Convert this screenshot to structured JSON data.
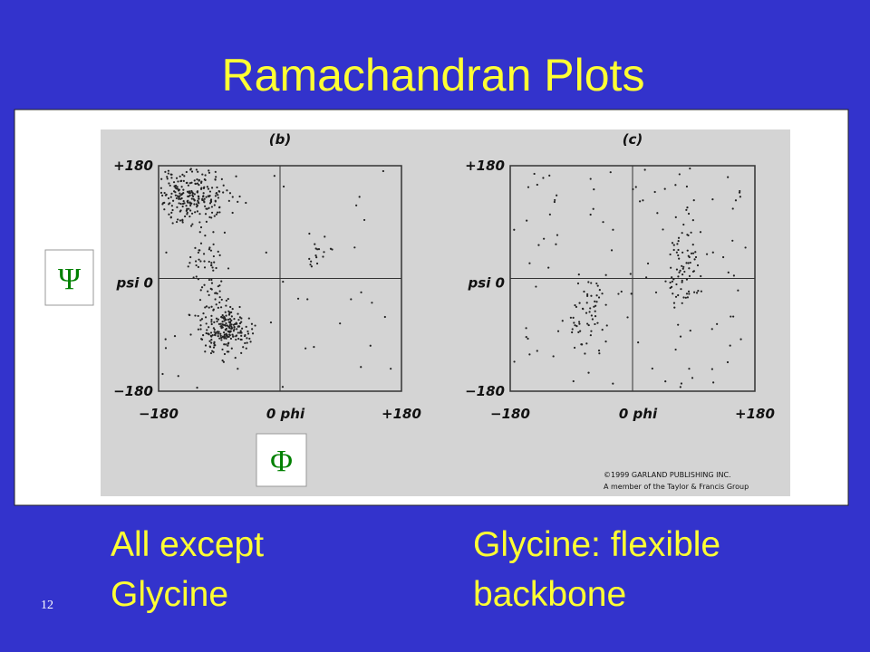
{
  "title": "Ramachandran Plots",
  "figure": {
    "panels": [
      {
        "label": "(b)",
        "y_top": "+180",
        "y_mid": "psi 0",
        "y_bottom": "−180",
        "x_left": "−180",
        "x_mid": "0 phi",
        "x_right": "+180"
      },
      {
        "label": "(c)",
        "y_top": "+180",
        "y_mid": "psi 0",
        "y_bottom": "−180",
        "x_left": "−180",
        "x_mid": "0 phi",
        "x_right": "+180"
      }
    ],
    "copyright": [
      "©1999 GARLAND PUBLISHING INC.",
      "A member of the Taylor & Francis Group"
    ]
  },
  "symbols": {
    "psi": "Ψ",
    "phi": "Φ"
  },
  "captions": [
    [
      "All except",
      "Glycine"
    ],
    [
      "Glycine: flexible",
      "backbone"
    ]
  ],
  "slide_number": "12"
}
